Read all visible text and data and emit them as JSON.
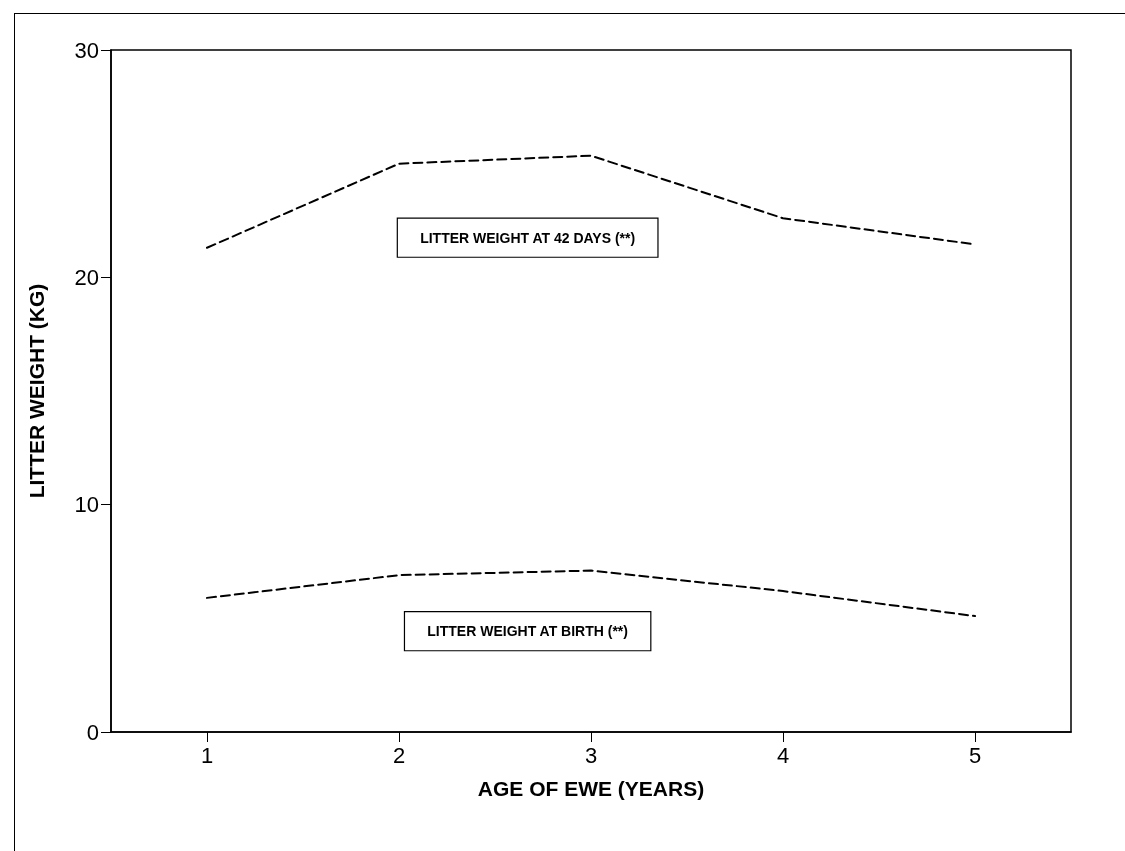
{
  "chart_data": {
    "type": "line",
    "xlabel": "AGE OF EWE (YEARS)",
    "ylabel": "LITTER WEIGHT (KG)",
    "x": [
      1,
      2,
      3,
      4,
      5
    ],
    "series": [
      {
        "name": "LITTER WEIGHT AT 42 DAYS (**)",
        "color": "#000000",
        "values": [
          21.3,
          25.0,
          25.35,
          22.6,
          21.45
        ]
      },
      {
        "name": "LITTER WEIGHT AT BIRTH (**)",
        "color": "#000000",
        "values": [
          5.9,
          6.9,
          7.1,
          6.2,
          5.1
        ]
      }
    ],
    "xlim": [
      0.5,
      5.5
    ],
    "xticks": [
      1,
      2,
      3,
      4,
      5
    ],
    "ylim": [
      0,
      30
    ],
    "yticks": [
      0,
      10,
      20,
      30
    ],
    "grid": false,
    "legend": false,
    "marker": "none",
    "line_style": "dashed"
  }
}
